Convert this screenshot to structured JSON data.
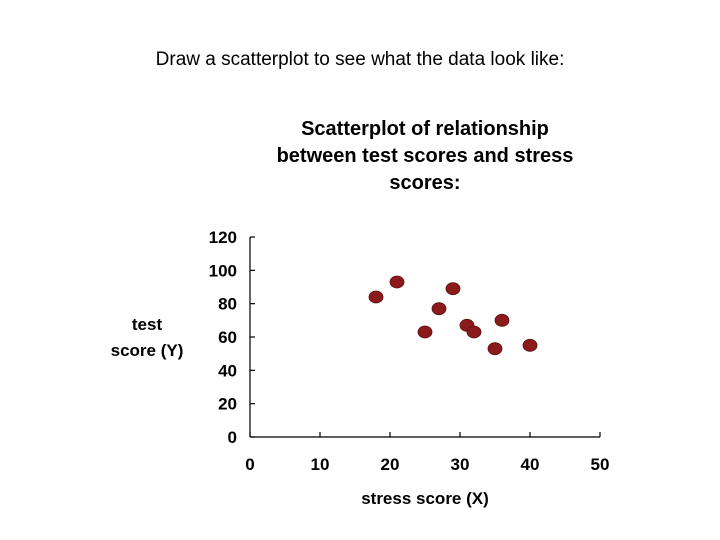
{
  "slide": {
    "heading": "Draw a scatterplot to see what the data look like:"
  },
  "chart_data": {
    "type": "scatter",
    "title_lines": [
      "Scatterplot of relationship",
      "between test scores and stress",
      "scores:"
    ],
    "xlabel": "stress score (X)",
    "ylabel_lines": [
      "test",
      "score (Y)"
    ],
    "xlim": [
      0,
      50
    ],
    "ylim": [
      0,
      120
    ],
    "x_ticks": [
      0,
      10,
      20,
      30,
      40,
      50
    ],
    "y_ticks": [
      0,
      20,
      40,
      60,
      80,
      100,
      120
    ],
    "grid": false,
    "legend": "none",
    "marker_color": "#8b1a1a",
    "points": [
      {
        "x": 18,
        "y": 84
      },
      {
        "x": 21,
        "y": 93
      },
      {
        "x": 25,
        "y": 63
      },
      {
        "x": 27,
        "y": 77
      },
      {
        "x": 29,
        "y": 89
      },
      {
        "x": 31,
        "y": 67
      },
      {
        "x": 32,
        "y": 63
      },
      {
        "x": 35,
        "y": 53
      },
      {
        "x": 36,
        "y": 70
      },
      {
        "x": 40,
        "y": 55
      }
    ]
  }
}
